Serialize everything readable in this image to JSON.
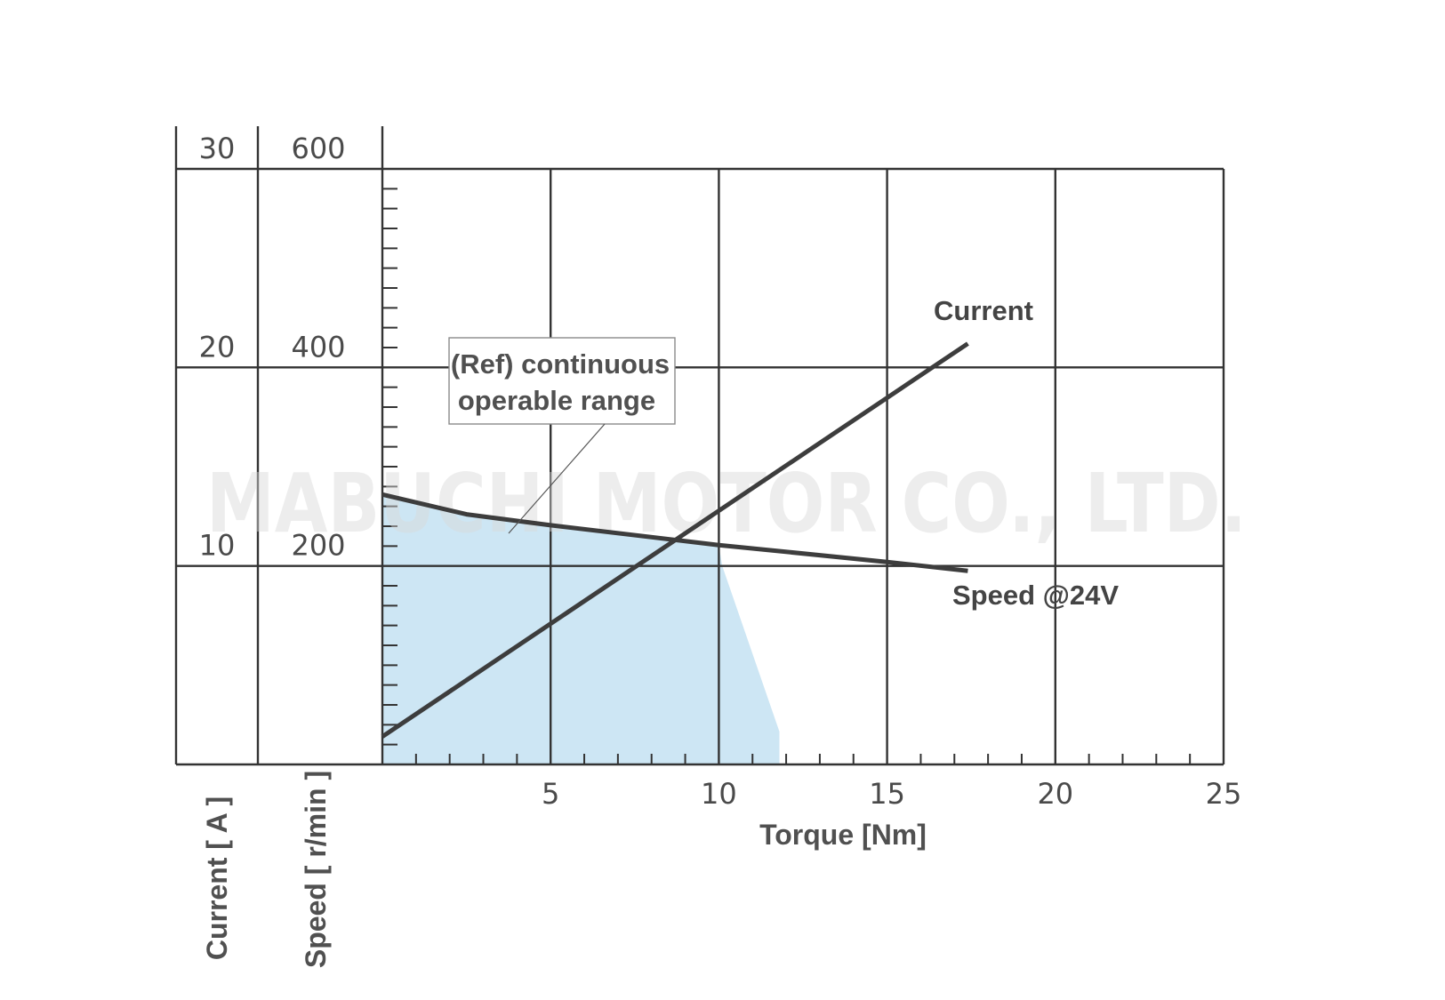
{
  "chart_data": {
    "type": "line",
    "x": {
      "label": "Torque [Nm]",
      "range": [
        0,
        25
      ],
      "ticks": [
        5,
        10,
        15,
        20,
        25
      ],
      "minor_step": 1
    },
    "y_axes": [
      {
        "id": "current",
        "label": "Current [ A ]",
        "range": [
          0,
          30
        ],
        "ticks": [
          10,
          20,
          30
        ],
        "tick_labels": [
          "10",
          "20",
          "30"
        ]
      },
      {
        "id": "speed",
        "label": "Speed [ r/min ]",
        "range": [
          0,
          600
        ],
        "ticks": [
          200,
          400,
          600
        ],
        "tick_labels": [
          "200",
          "400",
          "600"
        ]
      }
    ],
    "series": [
      {
        "name": "Current",
        "axis": "current",
        "points": [
          [
            0,
            1.4
          ],
          [
            17.4,
            21.2
          ]
        ],
        "color": "#3d3d3d"
      },
      {
        "name": "Speed @24V",
        "axis": "speed",
        "points": [
          [
            0,
            272
          ],
          [
            2.5,
            252
          ],
          [
            5,
            241
          ],
          [
            10,
            221
          ],
          [
            15,
            204
          ],
          [
            17.4,
            195
          ]
        ],
        "color": "#3d3d3d"
      }
    ],
    "region": {
      "label_lines": [
        "(Ref) continuous",
        "operable range"
      ],
      "axis": "speed",
      "points": [
        [
          0,
          0
        ],
        [
          0,
          272
        ],
        [
          2.5,
          252
        ],
        [
          5,
          241
        ],
        [
          10,
          221
        ],
        [
          10.1,
          200
        ],
        [
          11.8,
          33
        ],
        [
          11.8,
          0
        ]
      ],
      "color": "#cde6f4"
    },
    "grid": true,
    "watermark": "MABUCHI MOTOR CO., LTD."
  }
}
